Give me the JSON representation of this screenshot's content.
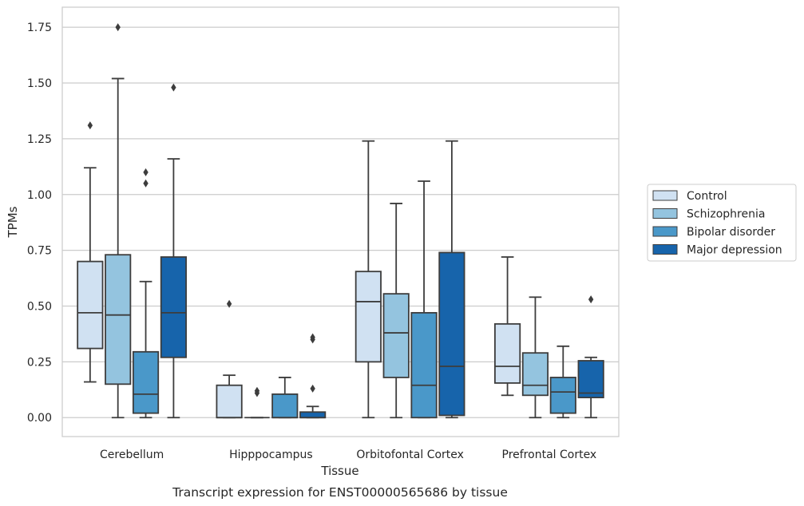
{
  "chart_data": {
    "type": "boxplot",
    "xlabel": "Tissue",
    "ylabel": "TPMs",
    "caption": "Transcript expression for ENST00000565686 by tissue",
    "categories": [
      "Cerebellum",
      "Hipppocampus",
      "Orbitofontal Cortex",
      "Prefrontal Cortex"
    ],
    "ylim": [
      -0.085,
      1.84
    ],
    "yticks": [
      "0.00",
      "0.25",
      "0.50",
      "0.75",
      "1.00",
      "1.25",
      "1.50",
      "1.75"
    ],
    "grid": "horizontal",
    "legend_position": "right",
    "series": [
      {
        "name": "Control",
        "color": "#d0e1f2",
        "boxes": [
          {
            "whislo": 0.16,
            "q1": 0.31,
            "med": 0.47,
            "q3": 0.7,
            "whishi": 1.12,
            "fliers": [
              1.31
            ]
          },
          {
            "whislo": 0.0,
            "q1": 0.0,
            "med": 0.0,
            "q3": 0.145,
            "whishi": 0.19,
            "fliers": [
              0.51
            ]
          },
          {
            "whislo": 0.0,
            "q1": 0.25,
            "med": 0.52,
            "q3": 0.655,
            "whishi": 1.24,
            "fliers": []
          },
          {
            "whislo": 0.1,
            "q1": 0.155,
            "med": 0.23,
            "q3": 0.42,
            "whishi": 0.72,
            "fliers": []
          }
        ]
      },
      {
        "name": "Schizophrenia",
        "color": "#94c4df",
        "boxes": [
          {
            "whislo": 0.0,
            "q1": 0.15,
            "med": 0.46,
            "q3": 0.73,
            "whishi": 1.52,
            "fliers": [
              1.75
            ]
          },
          {
            "whislo": 0.0,
            "q1": 0.0,
            "med": 0.0,
            "q3": 0.0,
            "whishi": 0.0,
            "fliers": [
              0.11,
              0.12
            ]
          },
          {
            "whislo": 0.0,
            "q1": 0.18,
            "med": 0.38,
            "q3": 0.555,
            "whishi": 0.96,
            "fliers": []
          },
          {
            "whislo": 0.0,
            "q1": 0.1,
            "med": 0.145,
            "q3": 0.29,
            "whishi": 0.54,
            "fliers": []
          }
        ]
      },
      {
        "name": "Bipolar disorder",
        "color": "#4a98c9",
        "boxes": [
          {
            "whislo": 0.0,
            "q1": 0.02,
            "med": 0.105,
            "q3": 0.295,
            "whishi": 0.61,
            "fliers": [
              1.05,
              1.1
            ]
          },
          {
            "whislo": 0.0,
            "q1": 0.0,
            "med": 0.0,
            "q3": 0.105,
            "whishi": 0.18,
            "fliers": []
          },
          {
            "whislo": 0.0,
            "q1": 0.0,
            "med": 0.145,
            "q3": 0.47,
            "whishi": 1.06,
            "fliers": []
          },
          {
            "whislo": 0.0,
            "q1": 0.02,
            "med": 0.115,
            "q3": 0.18,
            "whishi": 0.32,
            "fliers": []
          }
        ]
      },
      {
        "name": "Major depression",
        "color": "#1764ab",
        "boxes": [
          {
            "whislo": 0.0,
            "q1": 0.27,
            "med": 0.47,
            "q3": 0.72,
            "whishi": 1.16,
            "fliers": [
              1.48
            ]
          },
          {
            "whislo": 0.0,
            "q1": 0.0,
            "med": 0.0,
            "q3": 0.025,
            "whishi": 0.05,
            "fliers": [
              0.13,
              0.35,
              0.36
            ]
          },
          {
            "whislo": 0.0,
            "q1": 0.01,
            "med": 0.23,
            "q3": 0.74,
            "whishi": 1.24,
            "fliers": []
          },
          {
            "whislo": 0.0,
            "q1": 0.09,
            "med": 0.11,
            "q3": 0.255,
            "whishi": 0.27,
            "fliers": [
              0.53
            ]
          }
        ]
      }
    ]
  }
}
